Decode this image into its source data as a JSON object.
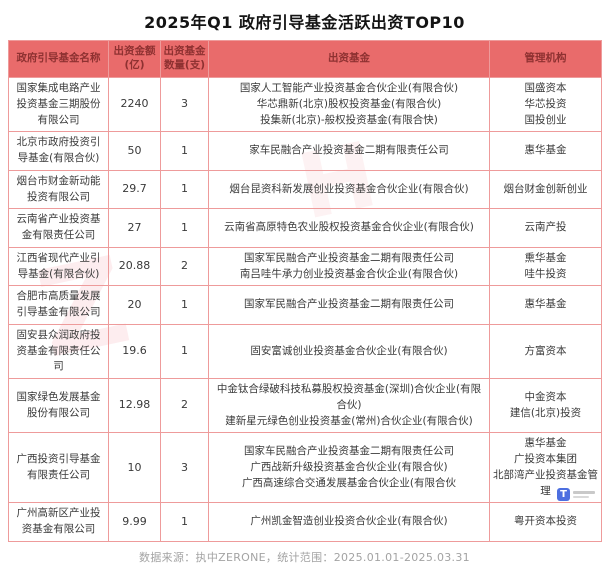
{
  "title": "2025年Q1 政府引导基金活跃出资TOP10",
  "accent_colors": {
    "header_background": "#e96b6b",
    "header_text": "#8e3131",
    "table_border": "#ee9b9b",
    "logo_blue": "#4d6fe0"
  },
  "table": {
    "headers": [
      "政府引导基金名称",
      "出资金额(亿)",
      "出资基金数量(支)",
      "出资基金",
      "管理机构"
    ],
    "rows": [
      {
        "name": "国家集成电路产业投资基金三期股份有限公司",
        "amount": "2240",
        "count": "3",
        "funds": [
          "国家人工智能产业投资基金合伙企业(有限合伙)",
          "华芯鼎新(北京)股权投资基金(有限合伙)",
          "投集新(北京)-般权投资基金(有限合快)"
        ],
        "managers": [
          "国盛资本",
          "华芯投资",
          "国投创业"
        ]
      },
      {
        "name": "北京市政府投资引导基金(有限合伙)",
        "amount": "50",
        "count": "1",
        "funds": [
          "家车民融合产业投资基金二期有限责任公司"
        ],
        "managers": [
          "惠华基金"
        ]
      },
      {
        "name": "烟台市财金新动能投资有限公司",
        "amount": "29.7",
        "count": "1",
        "funds": [
          "烟台昆资科新发展创业投资基金合伙企业(有限合伙)"
        ],
        "managers": [
          "烟台财金创新创业"
        ]
      },
      {
        "name": "云南省产业投资基金有限责任公司",
        "amount": "27",
        "count": "1",
        "funds": [
          "云南省高原特色农业股权投资基金合伙企业(有限合伙)"
        ],
        "managers": [
          "云南产投"
        ]
      },
      {
        "name": "江西省现代产业引导基金(有限合伙)",
        "amount": "20.88",
        "count": "2",
        "funds": [
          "国家军民融合产业投资基金二期有限责任公司",
          "南吕哇牛承力创业投资基金合伙企业(有限合伙)"
        ],
        "managers": [
          "熏华基金",
          "哇牛投资"
        ]
      },
      {
        "name": "合肥市高质量发展引导基金有限公司",
        "amount": "20",
        "count": "1",
        "funds": [
          "国家军民融合产业投资基金二期有限责任公司"
        ],
        "managers": [
          "惠华基金"
        ]
      },
      {
        "name": "固安县众润政府投资基金有限责任公司",
        "amount": "19.6",
        "count": "1",
        "funds": [
          "固安富诚创业投资基金合伙企业(有限合伙)"
        ],
        "managers": [
          "方富资本"
        ]
      },
      {
        "name": "国家绿色发展基金股份有限公司",
        "amount": "12.98",
        "count": "2",
        "funds": [
          "中金钛合绿破科技私募股权投资基金(深圳)合伙企业(有限合伙)",
          "建新星元绿色创业投资基金(常州)合伙企业(有限合伙)"
        ],
        "managers": [
          "中金资本",
          "建信(北京)投资"
        ]
      },
      {
        "name": "广西投资引导基金有限责任公司",
        "amount": "10",
        "count": "3",
        "funds": [
          "国家车民融合产业投资基金二期有限责任公司",
          "广西战新升级投资基金合伙企业(有限合伙)",
          "广西高速综合交通发展基金合伙企业(有限合伙"
        ],
        "managers": [
          "惠华基金",
          "广投资本集团",
          "北部湾产业投资基金管理"
        ]
      },
      {
        "name": "广州高新区产业投资基金有限公司",
        "amount": "9.99",
        "count": "1",
        "funds": [
          "广州凯金智造创业投资合伙企业(有限合伙)"
        ],
        "managers": [
          "粤开资本投资"
        ]
      }
    ]
  },
  "footer": {
    "source_note": "数据来源：执中ZERONE，统计范围：2025.01.01-2025.03.31"
  },
  "watermark_logo": {
    "glyph": "T"
  }
}
